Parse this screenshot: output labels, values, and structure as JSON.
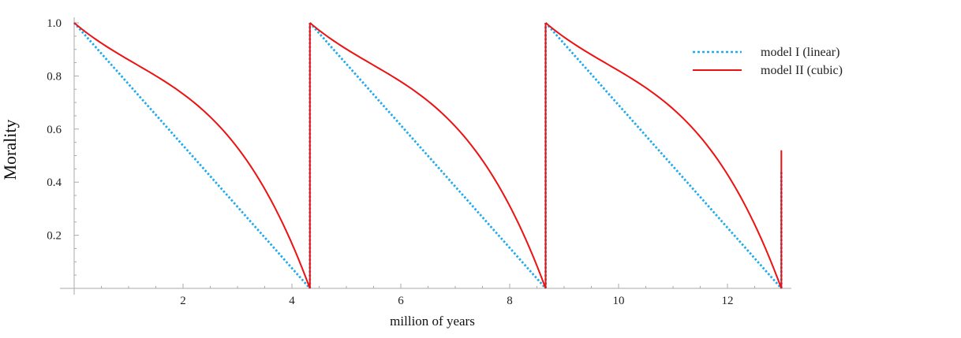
{
  "chart_data": {
    "type": "line",
    "title": "",
    "xlabel": "million of years",
    "ylabel": "Morality",
    "xlim": [
      0,
      13.2
    ],
    "ylim": [
      0,
      1.0
    ],
    "x_ticks": [
      2,
      4,
      6,
      8,
      10,
      12
    ],
    "y_ticks": [
      0.2,
      0.4,
      0.6,
      0.8,
      1.0
    ],
    "x_tick_labels": [
      "2",
      "4",
      "6",
      "8",
      "10",
      "12"
    ],
    "y_tick_labels": [
      "0.2",
      "0.4",
      "0.6",
      "0.8",
      "1.0"
    ],
    "grid": false,
    "legend_position": "upper right",
    "period": 4.33,
    "x_end": 13.0,
    "series": [
      {
        "name": "model I (linear)",
        "style": "dotted",
        "color": "#1eaaf0",
        "x": [
          0,
          4.33,
          4.33,
          8.66,
          8.66,
          12.99,
          12.99,
          13.0
        ],
        "y": [
          1.0,
          0.0,
          1.0,
          0.0,
          1.0,
          0.0,
          0.44,
          0.44
        ]
      },
      {
        "name": "model II (cubic)",
        "style": "solid",
        "color": "#ee1111",
        "x": [
          0,
          1,
          2,
          3,
          4,
          4.33,
          4.33,
          5.33,
          6.33,
          7.33,
          8.33,
          8.66,
          8.66,
          9.66,
          10.66,
          11.66,
          12.66,
          12.99,
          12.99
        ],
        "y": [
          1.0,
          0.86,
          0.73,
          0.53,
          0.18,
          0.0,
          1.0,
          0.86,
          0.73,
          0.53,
          0.18,
          0.0,
          1.0,
          0.86,
          0.73,
          0.53,
          0.18,
          0.0,
          0.52
        ]
      }
    ]
  },
  "legend": {
    "items": [
      {
        "label": "model I (linear)",
        "color": "#1eaaf0",
        "style": "dotted"
      },
      {
        "label": "model II (cubic)",
        "color": "#ee1111",
        "style": "solid"
      }
    ]
  },
  "axes": {
    "xlabel": "million of years",
    "ylabel": "Morality"
  }
}
